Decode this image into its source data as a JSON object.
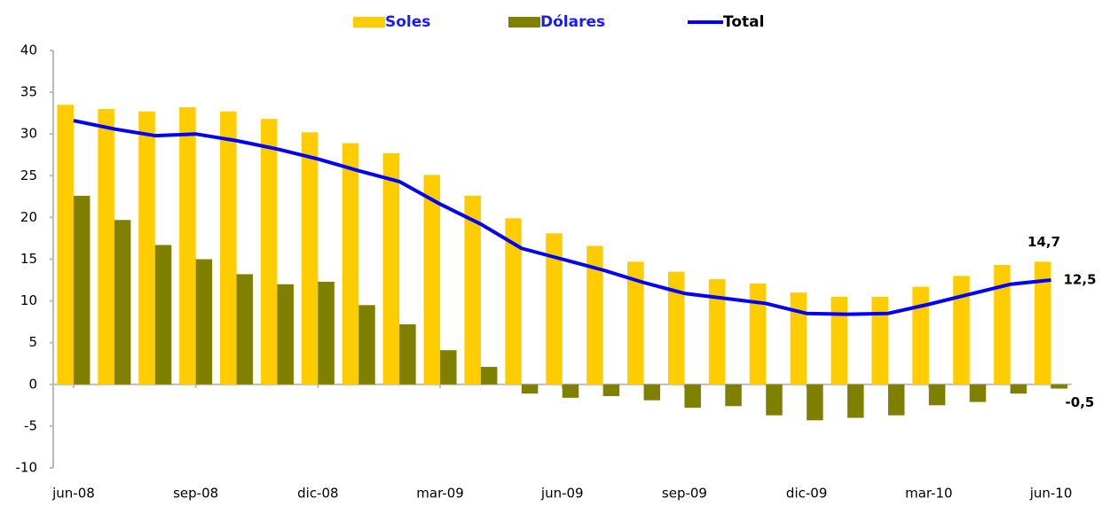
{
  "chart_data": {
    "type": "bar_line",
    "categories": [
      "jun-08",
      null,
      null,
      "sep-08",
      null,
      null,
      "dic-08",
      null,
      null,
      "mar-09",
      null,
      null,
      "jun-09",
      null,
      null,
      "sep-09",
      null,
      null,
      "dic-09",
      null,
      null,
      "mar-10",
      null,
      null,
      "jun-10"
    ],
    "series": [
      {
        "name": "Soles",
        "type": "bar",
        "color": "#ffcc00",
        "values": [
          33.5,
          33.0,
          32.7,
          33.2,
          32.7,
          31.8,
          30.2,
          28.9,
          27.7,
          25.1,
          22.6,
          19.9,
          18.1,
          16.6,
          14.7,
          13.5,
          12.6,
          12.1,
          11.0,
          10.5,
          10.5,
          11.7,
          13.0,
          14.3,
          14.7
        ],
        "value_labels": [
          null,
          null,
          null,
          null,
          null,
          null,
          null,
          null,
          null,
          null,
          null,
          null,
          null,
          null,
          null,
          null,
          null,
          null,
          null,
          null,
          null,
          null,
          null,
          null,
          "14,7"
        ]
      },
      {
        "name": "Dólares",
        "type": "bar",
        "color": "#808000",
        "values": [
          22.6,
          19.7,
          16.7,
          15.0,
          13.2,
          12.0,
          12.3,
          9.5,
          7.2,
          4.1,
          2.1,
          -1.1,
          -1.6,
          -1.4,
          -1.9,
          -2.8,
          -2.6,
          -3.7,
          -4.3,
          -4.0,
          -3.7,
          -2.5,
          -2.1,
          -1.1,
          -0.5
        ],
        "value_labels": [
          null,
          null,
          null,
          null,
          null,
          null,
          null,
          null,
          null,
          null,
          null,
          null,
          null,
          null,
          null,
          null,
          null,
          null,
          null,
          null,
          null,
          null,
          null,
          null,
          "-0,5"
        ]
      },
      {
        "name": "Total",
        "type": "line",
        "color": "#0000ff",
        "values": [
          31.6,
          30.6,
          29.8,
          30.0,
          29.2,
          28.2,
          27.0,
          25.6,
          24.3,
          21.6,
          19.2,
          16.3,
          15.0,
          13.7,
          12.2,
          10.9,
          10.3,
          9.7,
          8.5,
          8.4,
          8.5,
          9.6,
          10.8,
          12.0,
          12.5
        ],
        "value_labels": [
          null,
          null,
          null,
          null,
          null,
          null,
          null,
          null,
          null,
          null,
          null,
          null,
          null,
          null,
          null,
          null,
          null,
          null,
          null,
          null,
          null,
          null,
          null,
          null,
          "12,5"
        ]
      }
    ],
    "ylim": [
      -10,
      40
    ],
    "yticks": [
      -10,
      -5,
      0,
      5,
      10,
      15,
      20,
      25,
      30,
      35,
      40
    ],
    "legend": "top",
    "grid": false
  }
}
